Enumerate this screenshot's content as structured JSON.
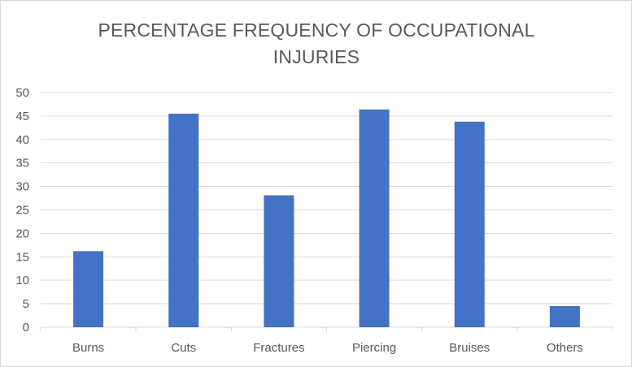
{
  "chart_data": {
    "type": "bar",
    "title_lines": [
      "PERCENTAGE FREQUENCY OF OCCUPATIONAL",
      "INJURIES"
    ],
    "categories": [
      "Burns",
      "Cuts",
      "Fractures",
      "Piercing",
      "Bruises",
      "Others"
    ],
    "values": [
      16.2,
      45.5,
      28.1,
      46.4,
      43.8,
      4.5
    ],
    "ylim": [
      0,
      50
    ],
    "yticks": [
      0,
      5,
      10,
      15,
      20,
      25,
      30,
      35,
      40,
      45,
      50
    ],
    "xlabel": "",
    "ylabel": "",
    "grid": true,
    "legend": "none",
    "bar_color": "#4472c4",
    "grid_color": "#d9d9d9",
    "text_color": "#595959"
  }
}
